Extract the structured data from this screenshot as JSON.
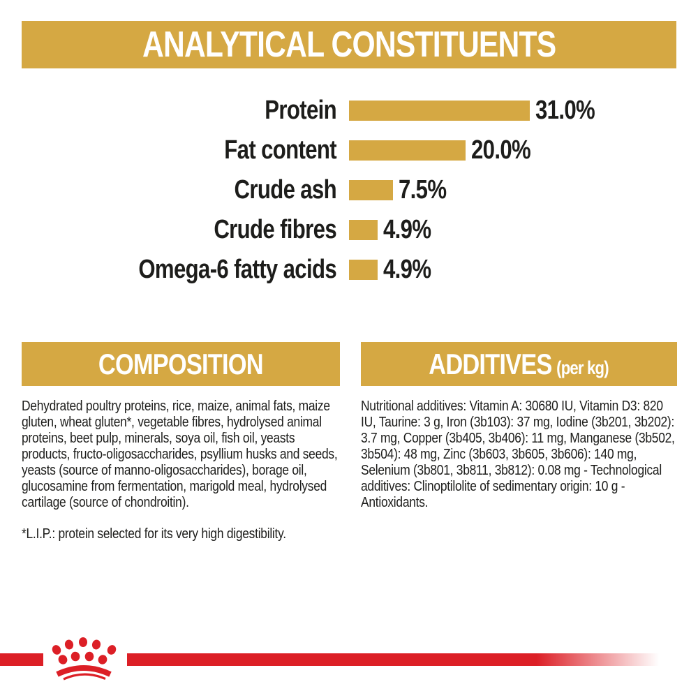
{
  "colors": {
    "gold": "#D5A843",
    "red": "#DC1F26",
    "text": "#1D1D1B",
    "banner_text": "#FFFFFF",
    "background": "#FFFFFF"
  },
  "header": {
    "title": "ANALYTICAL CONSTITUENTS"
  },
  "chart_data": {
    "type": "bar",
    "orientation": "horizontal",
    "title": "ANALYTICAL CONSTITUENTS",
    "categories": [
      "Protein",
      "Fat content",
      "Crude ash",
      "Crude fibres",
      "Omega-6 fatty acids"
    ],
    "values": [
      31.0,
      20.0,
      7.5,
      4.9,
      4.9
    ],
    "value_labels": [
      "31.0%",
      "20.0%",
      "7.5%",
      "4.9%",
      "4.9%"
    ],
    "unit": "%",
    "xlim": [
      0,
      31
    ],
    "grid": false,
    "bar_color": "#D5A843",
    "legend": "none"
  },
  "composition": {
    "heading": "COMPOSITION",
    "body": "Dehydrated poultry proteins, rice, maize, animal fats, maize gluten, wheat gluten*, vegetable fibres, hydrolysed animal proteins, beet pulp, minerals, soya oil, fish oil, yeasts products, fructo-oligosaccharides, psyllium husks and seeds, yeasts (source of manno-oligosaccharides), borage oil, glucosamine from fermentation, marigold meal, hydrolysed cartilage (source of chondroitin).",
    "footnote": "*L.I.P.: protein selected for its very high digestibility."
  },
  "additives": {
    "heading": "ADDITIVES",
    "heading_suffix": "(per kg)",
    "body": "Nutritional additives: Vitamin A: 30680 IU, Vitamin D3: 820 IU, Taurine: 3 g, Iron (3b103): 37 mg, Iodine (3b201, 3b202): 3.7 mg, Copper (3b405, 3b406): 11 mg, Manganese (3b502, 3b504): 48 mg, Zinc (3b603, 3b605, 3b606): 140 mg, Selenium (3b801, 3b811, 3b812): 0.08 mg - Technological additives: Clinoptilolite of sedimentary origin: 10 g - Antioxidants.",
    "footnote": ""
  },
  "footer": {
    "logo": "royal-canin-crown",
    "brand_color": "#DC1F26"
  }
}
